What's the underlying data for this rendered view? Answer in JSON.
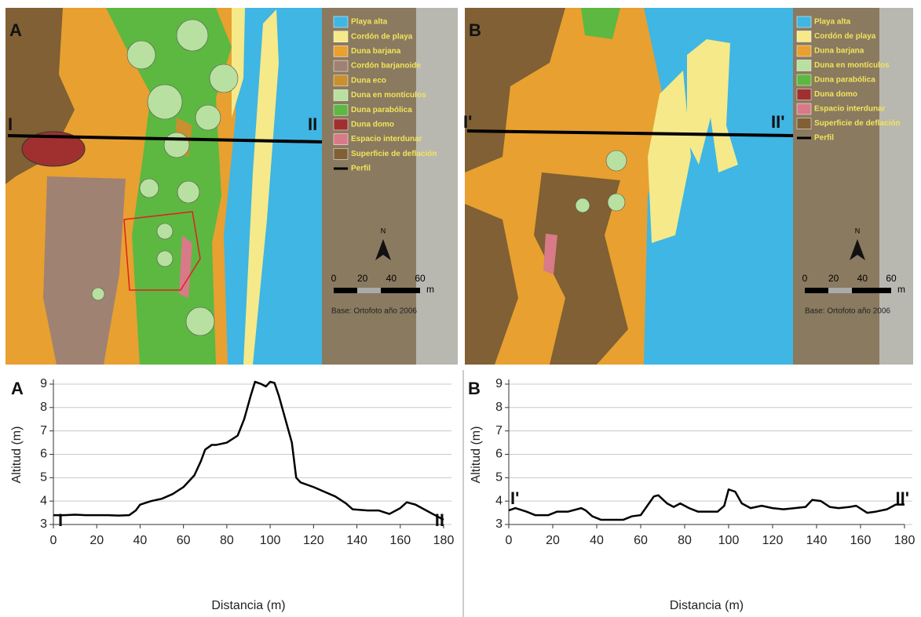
{
  "maps": [
    {
      "label": "A",
      "profile_start": "I",
      "profile_end": "II",
      "legend": [
        {
          "label": "Playa alta",
          "color": "#3fb6e3"
        },
        {
          "label": "Cordón de playa",
          "color": "#f5e98a"
        },
        {
          "label": "Duna barjana",
          "color": "#e8a030"
        },
        {
          "label": "Cordón barjanoide",
          "color": "#a08272"
        },
        {
          "label": "Duna eco",
          "color": "#c8902e"
        },
        {
          "label": "Duna en montículos",
          "color": "#b8e0a0"
        },
        {
          "label": "Duna parabólica",
          "color": "#5cb840"
        },
        {
          "label": "Duna domo",
          "color": "#a03030"
        },
        {
          "label": "Espacio interdunar",
          "color": "#d87a88"
        },
        {
          "label": "Superficie de deflación",
          "color": "#806034"
        },
        {
          "label": "Perfil",
          "color": "#000000"
        }
      ],
      "north": "N",
      "scale_ticks": [
        0,
        20,
        40,
        60
      ],
      "scale_unit": "m",
      "base": "Base: Ortofoto año 2006"
    },
    {
      "label": "B",
      "profile_start": "I'",
      "profile_end": "II'",
      "legend": [
        {
          "label": "Playa alta",
          "color": "#3fb6e3"
        },
        {
          "label": "Cordón de playa",
          "color": "#f5e98a"
        },
        {
          "label": "Duna barjana",
          "color": "#e8a030"
        },
        {
          "label": "Duna en montículos",
          "color": "#b8e0a0"
        },
        {
          "label": "Duna parabólica",
          "color": "#5cb840"
        },
        {
          "label": "Duna domo",
          "color": "#a03030"
        },
        {
          "label": "Espacio interdunar",
          "color": "#d87a88"
        },
        {
          "label": "Superficie de deflación",
          "color": "#806034"
        },
        {
          "label": "Perfil",
          "color": "#000000"
        }
      ],
      "north": "N",
      "scale_ticks": [
        0,
        20,
        40,
        60
      ],
      "scale_unit": "m",
      "base": "Base: Ortofoto año 2006"
    }
  ],
  "chart_data": [
    {
      "type": "line",
      "panel_label": "A",
      "xlabel": "Distancia (m)",
      "ylabel": "Altitud (m)",
      "x": [
        0,
        5,
        10,
        15,
        20,
        25,
        30,
        35,
        38,
        40,
        45,
        50,
        55,
        60,
        65,
        68,
        70,
        73,
        75,
        80,
        85,
        88,
        91,
        93,
        96,
        98,
        100,
        102,
        104,
        107,
        110,
        112,
        114,
        120,
        125,
        130,
        135,
        138,
        145,
        150,
        155,
        160,
        163,
        167,
        172,
        177,
        180
      ],
      "series": [
        {
          "color": "#000000",
          "values": [
            3.4,
            3.4,
            3.42,
            3.4,
            3.4,
            3.4,
            3.38,
            3.4,
            3.6,
            3.85,
            4.0,
            4.1,
            4.3,
            4.6,
            5.1,
            5.7,
            6.2,
            6.4,
            6.4,
            6.5,
            6.8,
            7.5,
            8.5,
            9.1,
            9.0,
            8.9,
            9.1,
            9.05,
            8.5,
            7.5,
            6.5,
            5.0,
            4.8,
            4.6,
            4.4,
            4.2,
            3.9,
            3.65,
            3.6,
            3.6,
            3.45,
            3.7,
            3.95,
            3.85,
            3.6,
            3.35,
            3.2
          ]
        }
      ],
      "xlim": [
        0,
        180
      ],
      "ylim": [
        3,
        9.2
      ],
      "xticks": [
        0,
        20,
        40,
        60,
        80,
        100,
        120,
        140,
        160,
        180
      ],
      "yticks": [
        3,
        4,
        5,
        6,
        7,
        8,
        9
      ],
      "grid": true,
      "annotations": [
        "I",
        "II"
      ]
    },
    {
      "type": "line",
      "panel_label": "B",
      "xlabel": "Distancia (m)",
      "ylabel": "Altitud (m)",
      "x": [
        0,
        3,
        8,
        12,
        18,
        22,
        27,
        33,
        35,
        38,
        42,
        48,
        52,
        56,
        60,
        63,
        66,
        68,
        72,
        75,
        78,
        82,
        86,
        90,
        95,
        98,
        100,
        103,
        106,
        110,
        115,
        120,
        125,
        130,
        135,
        138,
        142,
        146,
        150,
        155,
        158,
        163,
        167,
        172,
        176,
        180
      ],
      "series": [
        {
          "color": "#000000",
          "values": [
            3.6,
            3.7,
            3.55,
            3.4,
            3.4,
            3.55,
            3.55,
            3.7,
            3.6,
            3.35,
            3.2,
            3.2,
            3.2,
            3.35,
            3.4,
            3.8,
            4.2,
            4.25,
            3.9,
            3.75,
            3.9,
            3.7,
            3.55,
            3.55,
            3.55,
            3.8,
            4.5,
            4.4,
            3.9,
            3.7,
            3.8,
            3.7,
            3.65,
            3.7,
            3.75,
            4.05,
            4.0,
            3.75,
            3.7,
            3.75,
            3.8,
            3.5,
            3.55,
            3.65,
            3.85,
            3.85
          ]
        }
      ],
      "xlim": [
        0,
        180
      ],
      "ylim": [
        3,
        9.2
      ],
      "xticks": [
        0,
        20,
        40,
        60,
        80,
        100,
        120,
        140,
        160,
        180
      ],
      "yticks": [
        3,
        4,
        5,
        6,
        7,
        8,
        9
      ],
      "grid": true,
      "annotations": [
        "I'",
        "II'"
      ]
    }
  ]
}
